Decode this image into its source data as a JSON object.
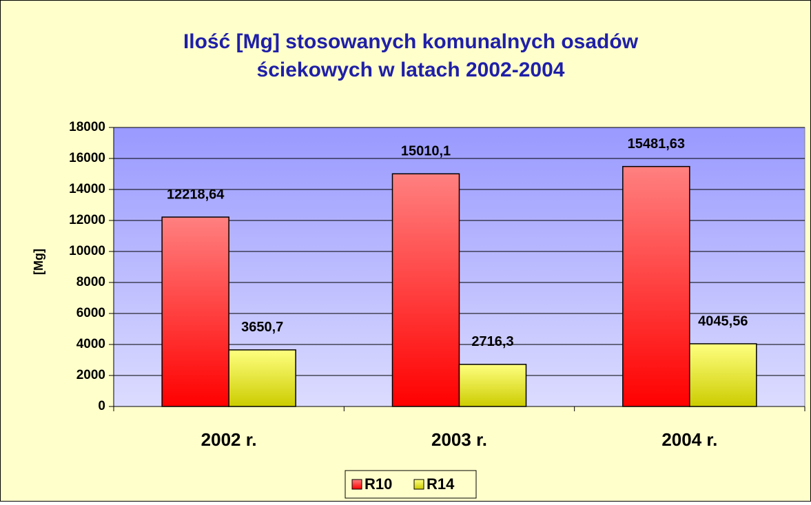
{
  "chart_data": {
    "type": "bar",
    "title": [
      "Ilość [Mg] stosowanych komunalnych osadów",
      "ściekowych w latach 2002-2004"
    ],
    "y_label": "[Mg]",
    "categories": [
      "2002 r.",
      "2003 r.",
      "2004 r."
    ],
    "series": [
      {
        "name": "R10",
        "color": "#ff0000",
        "values": [
          12218.64,
          15010.1,
          15481.63
        ],
        "value_labels": [
          "12218,64",
          "15010,1",
          "15481,63"
        ]
      },
      {
        "name": "R14",
        "color": "#ffff00",
        "values": [
          3650.7,
          2716.3,
          4045.56
        ],
        "value_labels": [
          "3650,7",
          "2716,3",
          "4045,56"
        ]
      }
    ],
    "ylim": [
      0,
      18000
    ],
    "yticks": [
      0,
      2000,
      4000,
      6000,
      8000,
      10000,
      12000,
      14000,
      16000,
      18000
    ],
    "grid": true,
    "legend": "bottom"
  }
}
